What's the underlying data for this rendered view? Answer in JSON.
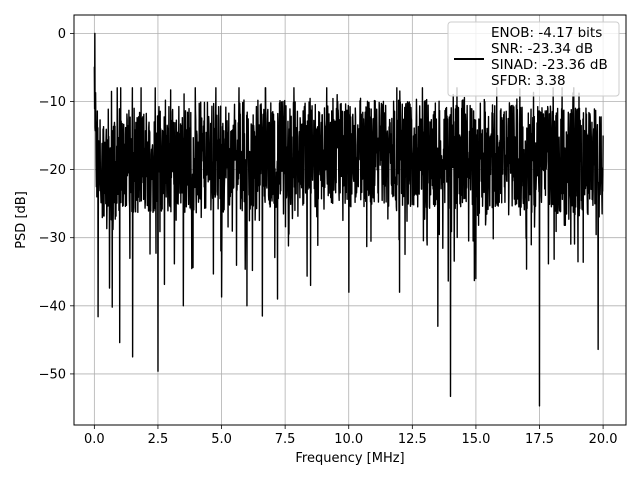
{
  "chart_data": {
    "type": "line",
    "title": "",
    "xlabel": "Frequency [MHz]",
    "ylabel": "PSD [dB]",
    "xlim": [
      -0.8,
      20.9
    ],
    "ylim": [
      -57.5,
      2.7
    ],
    "xticks": [
      0.0,
      2.5,
      5.0,
      7.5,
      10.0,
      12.5,
      15.0,
      17.5,
      20.0
    ],
    "xtick_labels": [
      "0.0",
      "2.5",
      "5.0",
      "7.5",
      "10.0",
      "12.5",
      "15.0",
      "17.5",
      "20.0"
    ],
    "yticks": [
      0,
      -10,
      -20,
      -30,
      -40,
      -50
    ],
    "ytick_labels": [
      "0",
      "−10",
      "−20",
      "−30",
      "−40",
      "−50"
    ],
    "grid": true,
    "legend_position": "top-right",
    "series_color": "#000000",
    "legend": [
      "ENOB: -4.17 bits",
      "SNR: -23.34 dB",
      "SINAD: -23.36 dB",
      "SFDR: 3.38"
    ],
    "series": [
      {
        "name": "ENOB: -4.17 bits SNR: -23.34 dB SINAD: -23.36 dB SFDR: 3.38",
        "description": "noise-like power spectral density, dense trace mostly between -30 and -10 dB",
        "x": [
          0.0,
          0.02,
          0.05,
          0.1,
          0.15,
          0.6,
          0.7,
          1.0,
          1.5,
          2.5,
          3.5,
          5.0,
          6.0,
          6.6,
          7.2,
          8.5,
          10.0,
          12.0,
          13.5,
          14.0,
          15.0,
          17.5,
          19.8,
          20.0
        ],
        "y": [
          -4.9,
          0.0,
          -8.7,
          -24.0,
          -41.6,
          -37.4,
          -40.2,
          -45.4,
          -47.5,
          -49.6,
          -40.0,
          -38.7,
          -40.0,
          -41.5,
          -39.0,
          -37.0,
          -38.0,
          -38.0,
          -43.0,
          -53.3,
          -36.0,
          -54.7,
          -46.4,
          -15.0
        ]
      }
    ]
  }
}
